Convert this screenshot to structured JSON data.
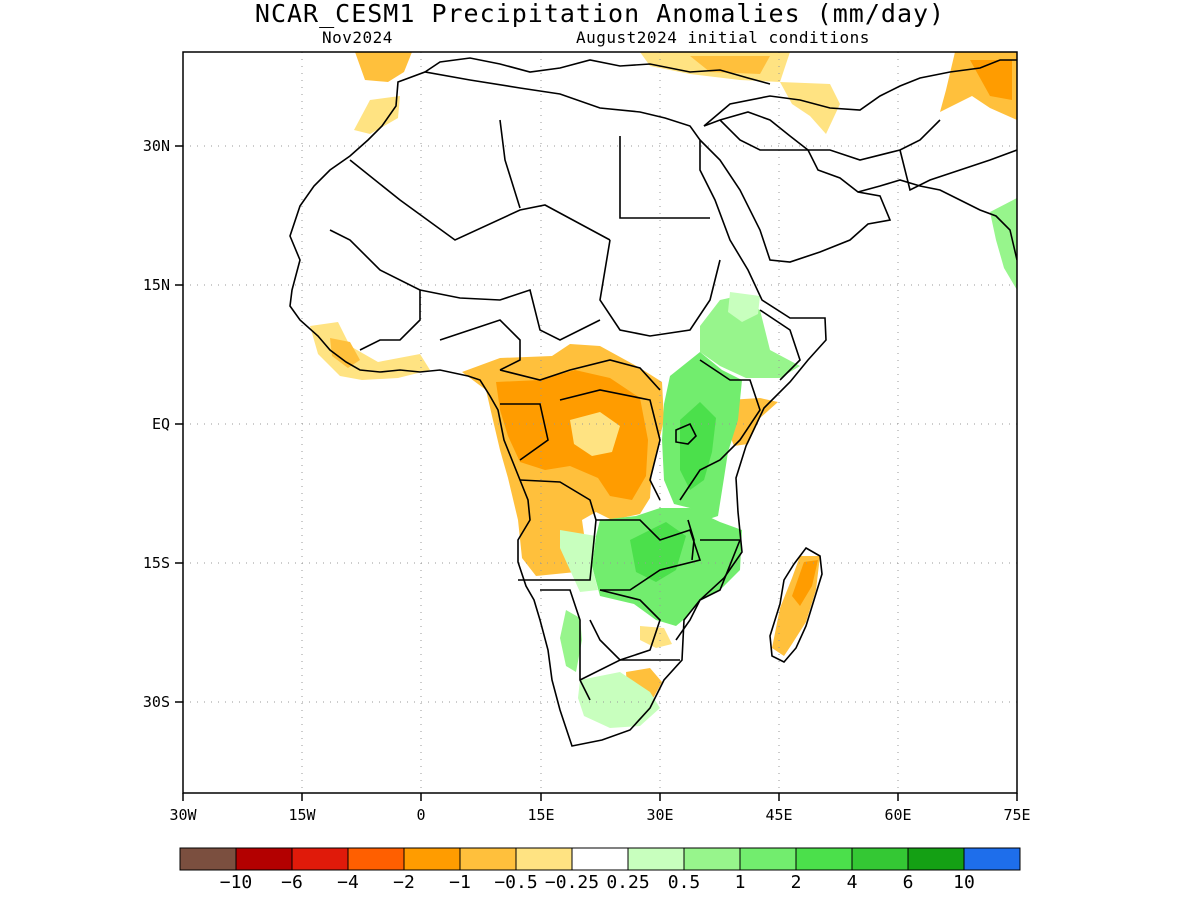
{
  "title": "NCAR_CESM1 Precipitation Anomalies (mm/day)",
  "subtitle_left": "Nov2024",
  "subtitle_right": "August2024 initial conditions",
  "map": {
    "lon_range": [
      -30,
      75
    ],
    "lat_range": [
      -40,
      40
    ],
    "grid_lines": true,
    "x_ticks": [
      {
        "lon": -30,
        "label": "30W"
      },
      {
        "lon": -15,
        "label": "15W"
      },
      {
        "lon": 0,
        "label": "0"
      },
      {
        "lon": 15,
        "label": "15E"
      },
      {
        "lon": 30,
        "label": "30E"
      },
      {
        "lon": 45,
        "label": "45E"
      },
      {
        "lon": 60,
        "label": "60E"
      },
      {
        "lon": 75,
        "label": "75E"
      }
    ],
    "y_ticks": [
      {
        "lat": 30,
        "label": "30N"
      },
      {
        "lat": 15,
        "label": "15N"
      },
      {
        "lat": 0,
        "label": "EQ"
      },
      {
        "lat": -15,
        "label": "15S"
      },
      {
        "lat": -30,
        "label": "30S"
      }
    ]
  },
  "colorbar": {
    "colors": [
      "#7b4f3f",
      "#b30000",
      "#e01a0a",
      "#ff5f00",
      "#ff9c00",
      "#ffc03c",
      "#ffe382",
      "#ffffff",
      "#c8ffbe",
      "#97f58c",
      "#72ed6e",
      "#4be04b",
      "#34c834",
      "#14a014",
      "#1e6eeb"
    ],
    "labels": [
      "-10",
      "-6",
      "-4",
      "-2",
      "-1",
      "-0.5",
      "-0.25",
      "0.25",
      "0.5",
      "1",
      "2",
      "4",
      "6",
      "10"
    ]
  }
}
